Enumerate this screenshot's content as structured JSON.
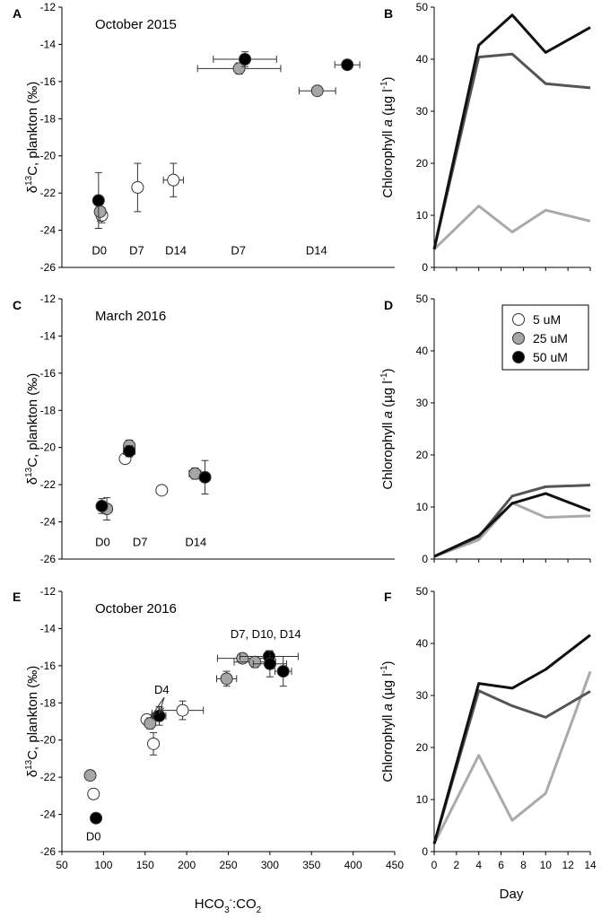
{
  "colors": {
    "low": "#ffffff",
    "mid": "#a6a6a6",
    "high": "#000000",
    "line_low": "#aaaaaa",
    "line_mid": "#555555",
    "line_high": "#111111"
  },
  "shared": {
    "left_ylabel_main": "δ",
    "left_ylabel_sup": "13",
    "left_ylabel_rest": "C, plankton (‰)",
    "right_ylabel_a": "Chlorophyll ",
    "right_ylabel_b": "a",
    "right_ylabel_c": " (µg l",
    "right_ylabel_sup": "-1",
    "right_ylabel_d": ")",
    "bottom_xlabel_left_main": "HCO",
    "bottom_xlabel_left_sub": "3",
    "bottom_xlabel_left_sup": "-",
    "bottom_xlabel_left_rest": ":CO",
    "bottom_xlabel_left_sub2": "2",
    "bottom_xlabel_right": "Day"
  },
  "legend": {
    "entries": [
      {
        "label": "5 uM",
        "color": "#ffffff"
      },
      {
        "label": "25 uM",
        "color": "#a6a6a6"
      },
      {
        "label": "50 uM",
        "color": "#000000"
      }
    ]
  },
  "chart_data": [
    {
      "id": "A",
      "type": "scatter",
      "title": "October 2015",
      "xlim": [
        50,
        450
      ],
      "ylim": [
        -26,
        -12
      ],
      "yticks": [
        -12,
        -14,
        -16,
        -18,
        -20,
        -22,
        -24,
        -26
      ],
      "annotations": [
        {
          "text": "D0",
          "x": 95,
          "y": -25.3
        },
        {
          "text": "D7",
          "x": 140,
          "y": -25.3
        },
        {
          "text": "D14",
          "x": 187,
          "y": -25.3
        },
        {
          "text": "D7",
          "x": 262,
          "y": -25.3
        },
        {
          "text": "D14",
          "x": 356,
          "y": -25.3
        }
      ],
      "points": [
        {
          "c": "5",
          "x": 98,
          "y": -23.2,
          "xerr": 6,
          "yerr": 0.4
        },
        {
          "c": "25",
          "x": 96,
          "y": -23.0,
          "xerr": 5,
          "yerr": 0.5
        },
        {
          "c": "50",
          "x": 94,
          "y": -22.4,
          "xerr": 4,
          "yerr": 1.5
        },
        {
          "c": "5",
          "x": 141,
          "y": -21.7,
          "xerr": 4,
          "yerr": 1.3
        },
        {
          "c": "5",
          "x": 184,
          "y": -21.3,
          "xerr": 12,
          "yerr": 0.9
        },
        {
          "c": "25",
          "x": 263,
          "y": -15.3,
          "xerr": 50,
          "yerr": 0.3
        },
        {
          "c": "50",
          "x": 270,
          "y": -14.8,
          "xerr": 38,
          "yerr": 0.4
        },
        {
          "c": "25",
          "x": 357,
          "y": -16.5,
          "xerr": 22,
          "yerr": 0
        },
        {
          "c": "50",
          "x": 393,
          "y": -15.1,
          "xerr": 15,
          "yerr": 0
        }
      ]
    },
    {
      "id": "B",
      "type": "line",
      "title": "",
      "xlim": [
        0,
        14
      ],
      "ylim": [
        0,
        50
      ],
      "yticks": [
        0,
        10,
        20,
        30,
        40,
        50
      ],
      "series": [
        {
          "name": "5 uM",
          "x": [
            0,
            4,
            7,
            10,
            14
          ],
          "values": [
            3.5,
            11.8,
            6.8,
            11.0,
            8.9
          ]
        },
        {
          "name": "25 uM",
          "x": [
            0,
            4,
            7,
            10,
            14
          ],
          "values": [
            3.5,
            40.4,
            41.0,
            35.3,
            34.5
          ]
        },
        {
          "name": "50 uM",
          "x": [
            0,
            4,
            7,
            10,
            14
          ],
          "values": [
            3.5,
            42.7,
            48.5,
            41.3,
            46.1
          ]
        }
      ]
    },
    {
      "id": "C",
      "type": "scatter",
      "title": "March 2016",
      "xlim": [
        50,
        450
      ],
      "ylim": [
        -26,
        -12
      ],
      "yticks": [
        -12,
        -14,
        -16,
        -18,
        -20,
        -22,
        -24,
        -26
      ],
      "annotations": [
        {
          "text": "D0",
          "x": 99,
          "y": -25.3
        },
        {
          "text": "D7",
          "x": 144,
          "y": -25.3
        },
        {
          "text": "D14",
          "x": 211,
          "y": -25.3
        }
      ],
      "points": [
        {
          "c": "5",
          "x": 126,
          "y": -20.6,
          "xerr": 4,
          "yerr": 0.2
        },
        {
          "c": "25",
          "x": 131,
          "y": -19.9,
          "xerr": 5,
          "yerr": 0.3
        },
        {
          "c": "50",
          "x": 131,
          "y": -20.2,
          "xerr": 7,
          "yerr": 0.3
        },
        {
          "c": "25",
          "x": 104,
          "y": -23.3,
          "xerr": 6,
          "yerr": 0.6
        },
        {
          "c": "50",
          "x": 98,
          "y": -23.15,
          "xerr": 5,
          "yerr": 0.4
        },
        {
          "c": "5",
          "x": 170,
          "y": -22.3,
          "xerr": 0,
          "yerr": 0
        },
        {
          "c": "25",
          "x": 210,
          "y": -21.4,
          "xerr": 7,
          "yerr": 0.3
        },
        {
          "c": "50",
          "x": 222,
          "y": -21.6,
          "xerr": 5,
          "yerr": 0.9
        }
      ]
    },
    {
      "id": "D",
      "type": "line",
      "title": "",
      "xlim": [
        0,
        14
      ],
      "ylim": [
        0,
        50
      ],
      "yticks": [
        0,
        10,
        20,
        30,
        40,
        50
      ],
      "series": [
        {
          "name": "5 uM",
          "x": [
            0,
            4,
            7,
            10,
            14
          ],
          "values": [
            0.5,
            3.7,
            10.8,
            8.0,
            8.3
          ]
        },
        {
          "name": "25 uM",
          "x": [
            0,
            4,
            7,
            10,
            14
          ],
          "values": [
            0.5,
            4.3,
            12.1,
            13.9,
            14.2
          ]
        },
        {
          "name": "50 uM",
          "x": [
            0,
            4,
            7,
            10,
            14
          ],
          "values": [
            0.5,
            4.5,
            10.7,
            12.6,
            9.3
          ]
        }
      ]
    },
    {
      "id": "E",
      "type": "scatter",
      "title": "October 2016",
      "xlim": [
        50,
        450
      ],
      "ylim": [
        -26,
        -12
      ],
      "yticks": [
        -12,
        -14,
        -16,
        -18,
        -20,
        -22,
        -24,
        -26
      ],
      "xticks": [
        50,
        100,
        150,
        200,
        250,
        300,
        350,
        400,
        450
      ],
      "annotations": [
        {
          "text": "D0",
          "x": 88,
          "y": -25.4
        },
        {
          "text": "D4",
          "x": 170,
          "y": -17.5
        },
        {
          "text": "D7, D10, D14",
          "x": 295,
          "y": -14.5
        }
      ],
      "points": [
        {
          "c": "25",
          "x": 84,
          "y": -21.9,
          "xerr": 0,
          "yerr": 0
        },
        {
          "c": "5",
          "x": 88,
          "y": -22.9,
          "xerr": 0,
          "yerr": 0
        },
        {
          "c": "50",
          "x": 91,
          "y": -24.2,
          "xerr": 0,
          "yerr": 0
        },
        {
          "c": "5",
          "x": 152,
          "y": -18.9,
          "xerr": 5,
          "yerr": 0.2
        },
        {
          "c": "25",
          "x": 156,
          "y": -19.1,
          "xerr": 5,
          "yerr": 0.3
        },
        {
          "c": "5",
          "x": 160,
          "y": -20.2,
          "xerr": 4,
          "yerr": 0.6
        },
        {
          "c": "50",
          "x": 167,
          "y": -18.7,
          "xerr": 8,
          "yerr": 0.5
        },
        {
          "c": "5",
          "x": 195,
          "y": -18.4,
          "xerr": 25,
          "yerr": 0.5
        },
        {
          "c": "25",
          "x": 248,
          "y": -16.7,
          "xerr": 12,
          "yerr": 0.4
        },
        {
          "c": "25",
          "x": 267,
          "y": -15.6,
          "xerr": 30,
          "yerr": 0
        },
        {
          "c": "25",
          "x": 282,
          "y": -15.8,
          "xerr": 25,
          "yerr": 0.3
        },
        {
          "c": "50",
          "x": 299,
          "y": -15.5,
          "xerr": 35,
          "yerr": 0.3
        },
        {
          "c": "50",
          "x": 300,
          "y": -15.9,
          "xerr": 20,
          "yerr": 0.7
        },
        {
          "c": "50",
          "x": 316,
          "y": -16.3,
          "xerr": 10,
          "yerr": 0.8
        }
      ]
    },
    {
      "id": "F",
      "type": "line",
      "title": "",
      "xlim": [
        0,
        14
      ],
      "ylim": [
        0,
        50
      ],
      "yticks": [
        0,
        10,
        20,
        30,
        40,
        50
      ],
      "xticks": [
        0,
        2,
        4,
        6,
        8,
        10,
        12,
        14
      ],
      "series": [
        {
          "name": "5 uM",
          "x": [
            0,
            4,
            7,
            10,
            14
          ],
          "values": [
            1.5,
            18.5,
            6.0,
            11.2,
            34.6
          ]
        },
        {
          "name": "25 uM",
          "x": [
            0,
            4,
            7,
            10,
            14
          ],
          "values": [
            1.5,
            30.9,
            28.0,
            25.8,
            30.8
          ]
        },
        {
          "name": "50 uM",
          "x": [
            0,
            4,
            7,
            10,
            14
          ],
          "values": [
            1.5,
            32.3,
            31.4,
            35.0,
            41.6
          ]
        }
      ]
    }
  ]
}
